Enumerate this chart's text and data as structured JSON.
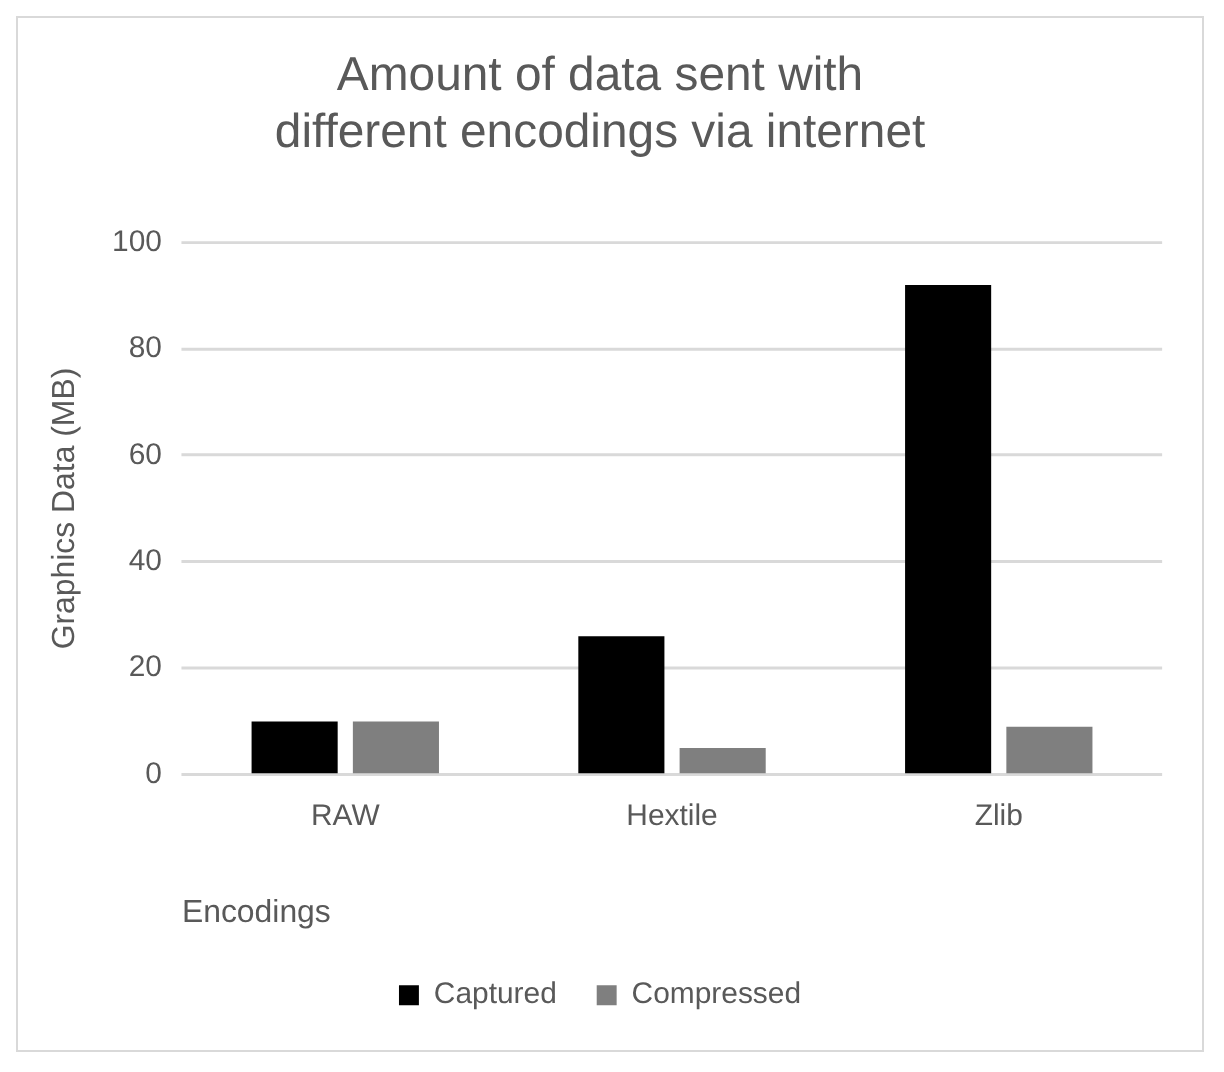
{
  "chart_data": {
    "type": "bar",
    "title": "Amount of data sent with different encodings via internet",
    "xlabel": "Encodings",
    "ylabel": "Graphics Data (MB)",
    "categories": [
      "RAW",
      "Hextile",
      "Zlib"
    ],
    "series": [
      {
        "name": "Captured",
        "color": "#000000",
        "values": [
          10,
          26,
          92
        ]
      },
      {
        "name": "Compressed",
        "color": "#7f7f7f",
        "values": [
          10,
          5,
          9
        ]
      }
    ],
    "ylim": [
      0,
      100
    ],
    "yticks": [
      0,
      20,
      40,
      60,
      80,
      100
    ],
    "grid": "y",
    "legend": "bottom"
  }
}
